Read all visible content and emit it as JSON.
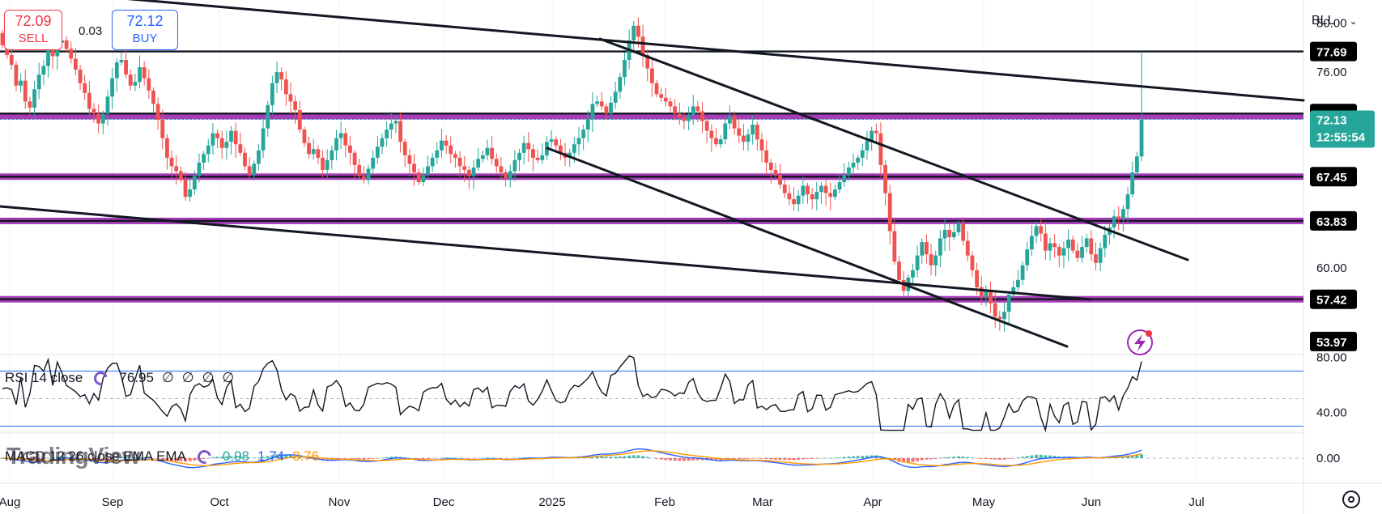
{
  "header": {
    "sell_price": "72.09",
    "sell_label": "SELL",
    "spread": "0.03",
    "buy_price": "72.12",
    "buy_label": "BUY",
    "symbol": "BLL"
  },
  "colors": {
    "up": "#26a69a",
    "down": "#ef5350",
    "level_purple": "#9c27b0",
    "trendline": "#131722",
    "macd_line": "#2962ff",
    "signal_line": "#ff9800",
    "last_price_tag": "#26a69a"
  },
  "price_axis": {
    "ticks": [
      "80.00",
      "76.00",
      "60.00"
    ],
    "min": 52.9,
    "max": 81.9,
    "tags": [
      {
        "label": "77.69",
        "value": 77.69,
        "style": "black"
      },
      {
        "label": "72.61",
        "value": 72.61,
        "style": "black"
      },
      {
        "label": "67.45",
        "value": 67.45,
        "style": "black"
      },
      {
        "label": "63.83",
        "value": 63.83,
        "style": "black"
      },
      {
        "label": "57.42",
        "value": 57.42,
        "style": "black"
      },
      {
        "label": "53.97",
        "value": 53.97,
        "style": "black"
      }
    ],
    "last_price": {
      "label": "72.13",
      "countdown": "12:55:54",
      "value": 72.13
    }
  },
  "time_axis": {
    "labels": [
      "Aug",
      "Sep",
      "Oct",
      "Nov",
      "Dec",
      "2025",
      "Feb",
      "Mar",
      "Apr",
      "May",
      "Jun",
      "Jul"
    ]
  },
  "rsi": {
    "title": "RSI 14 close",
    "value": "76.95",
    "extras": [
      "∅",
      "∅",
      "∅",
      "∅"
    ],
    "ticks": [
      "80.00",
      "40.00"
    ],
    "bands": [
      70,
      30
    ],
    "min": 25,
    "max": 82
  },
  "macd": {
    "title": "MACD 12 26 close EMA EMA",
    "values": [
      {
        "label": "0.98",
        "color": "#26a69a"
      },
      {
        "label": "1.74",
        "color": "#2962ff"
      },
      {
        "label": "0.76",
        "color": "#ff9800"
      }
    ],
    "tick": "0.00",
    "min": -3.5,
    "max": 3.5
  },
  "branding": {
    "watermark": "TradingView"
  },
  "chart_data": {
    "type": "candlestick",
    "symbol": "BLL",
    "overlays": {
      "horizontal_levels": [
        77.69,
        72.61,
        67.45,
        63.83,
        57.42
      ],
      "purple_zones": [
        72.4,
        67.45,
        63.83,
        57.42
      ],
      "trendlines": [
        {
          "from": [
            "Aug",
            86.0
          ],
          "to": [
            "Jun",
            76.0
          ]
        },
        {
          "from": [
            "Jan",
            81.2
          ],
          "to": [
            "Jun",
            62.5
          ]
        },
        {
          "from": [
            "Jan",
            71.5
          ],
          "to": [
            "May",
            54.5
          ]
        },
        {
          "from": [
            "Aug",
            67.3
          ],
          "to": [
            "Jun",
            59.5
          ]
        }
      ]
    },
    "closes": [
      78.2,
      77.4,
      76.6,
      74.9,
      75.3,
      73.6,
      73.1,
      74.6,
      75.8,
      76.5,
      77.9,
      77.3,
      78.4,
      78.6,
      77.9,
      77.1,
      76.2,
      75.1,
      74.3,
      73.0,
      72.6,
      71.8,
      72.6,
      74.0,
      75.5,
      76.8,
      77.0,
      75.8,
      74.9,
      75.2,
      76.4,
      75.5,
      74.5,
      73.4,
      72.1,
      70.6,
      69.0,
      68.3,
      67.9,
      67.2,
      65.8,
      66.4,
      67.5,
      68.6,
      69.3,
      70.0,
      71.0,
      70.6,
      69.8,
      70.3,
      71.2,
      70.1,
      69.4,
      68.3,
      67.6,
      68.5,
      69.6,
      71.4,
      73.3,
      75.1,
      76.0,
      75.4,
      74.2,
      73.6,
      72.9,
      71.3,
      70.2,
      69.3,
      69.7,
      69.0,
      68.0,
      68.8,
      69.6,
      70.6,
      71.0,
      70.0,
      69.4,
      68.4,
      67.5,
      67.2,
      68.1,
      69.0,
      69.9,
      70.6,
      71.3,
      71.8,
      72.0,
      70.3,
      69.2,
      68.5,
      67.8,
      67.0,
      67.6,
      68.3,
      69.0,
      69.6,
      70.4,
      70.0,
      69.3,
      69.0,
      68.3,
      68.0,
      67.5,
      68.2,
      68.9,
      69.2,
      69.8,
      68.9,
      68.3,
      67.8,
      67.3,
      67.9,
      68.8,
      69.4,
      70.2,
      69.7,
      69.0,
      68.8,
      69.2,
      70.3,
      70.5,
      70.0,
      69.4,
      69.0,
      69.4,
      70.1,
      70.6,
      71.3,
      72.2,
      73.4,
      73.6,
      73.2,
      72.6,
      73.5,
      74.4,
      75.6,
      77.0,
      78.6,
      79.8,
      78.9,
      77.4,
      76.3,
      75.1,
      74.2,
      73.9,
      73.6,
      73.2,
      72.6,
      72.3,
      72.0,
      72.5,
      73.2,
      72.8,
      72.0,
      71.2,
      70.6,
      70.1,
      70.5,
      71.8,
      72.4,
      71.4,
      70.8,
      70.3,
      70.9,
      71.7,
      70.5,
      69.6,
      68.6,
      68.0,
      67.6,
      66.8,
      66.1,
      65.6,
      65.2,
      65.9,
      66.7,
      66.0,
      65.6,
      66.2,
      66.7,
      66.1,
      65.8,
      66.4,
      67.0,
      67.6,
      68.2,
      68.6,
      69.0,
      69.6,
      70.4,
      71.2,
      71.0,
      68.4,
      66.1,
      63.0,
      60.5,
      59.0,
      58.1,
      59.2,
      59.8,
      61.0,
      62.1,
      61.1,
      60.2,
      61.0,
      62.4,
      63.1,
      62.5,
      62.9,
      63.6,
      62.2,
      61.0,
      59.8,
      58.4,
      57.6,
      58.2,
      57.1,
      56.0,
      55.8,
      56.4,
      57.8,
      58.4,
      59.0,
      60.2,
      61.5,
      62.6,
      63.4,
      62.8,
      61.4,
      62.0,
      61.7,
      61.0,
      61.6,
      62.3,
      61.4,
      60.8,
      61.7,
      62.4,
      61.1,
      60.4,
      61.6,
      62.7,
      63.3,
      64.2,
      64.0,
      64.8,
      66.0,
      67.8,
      69.1,
      72.1
    ]
  }
}
